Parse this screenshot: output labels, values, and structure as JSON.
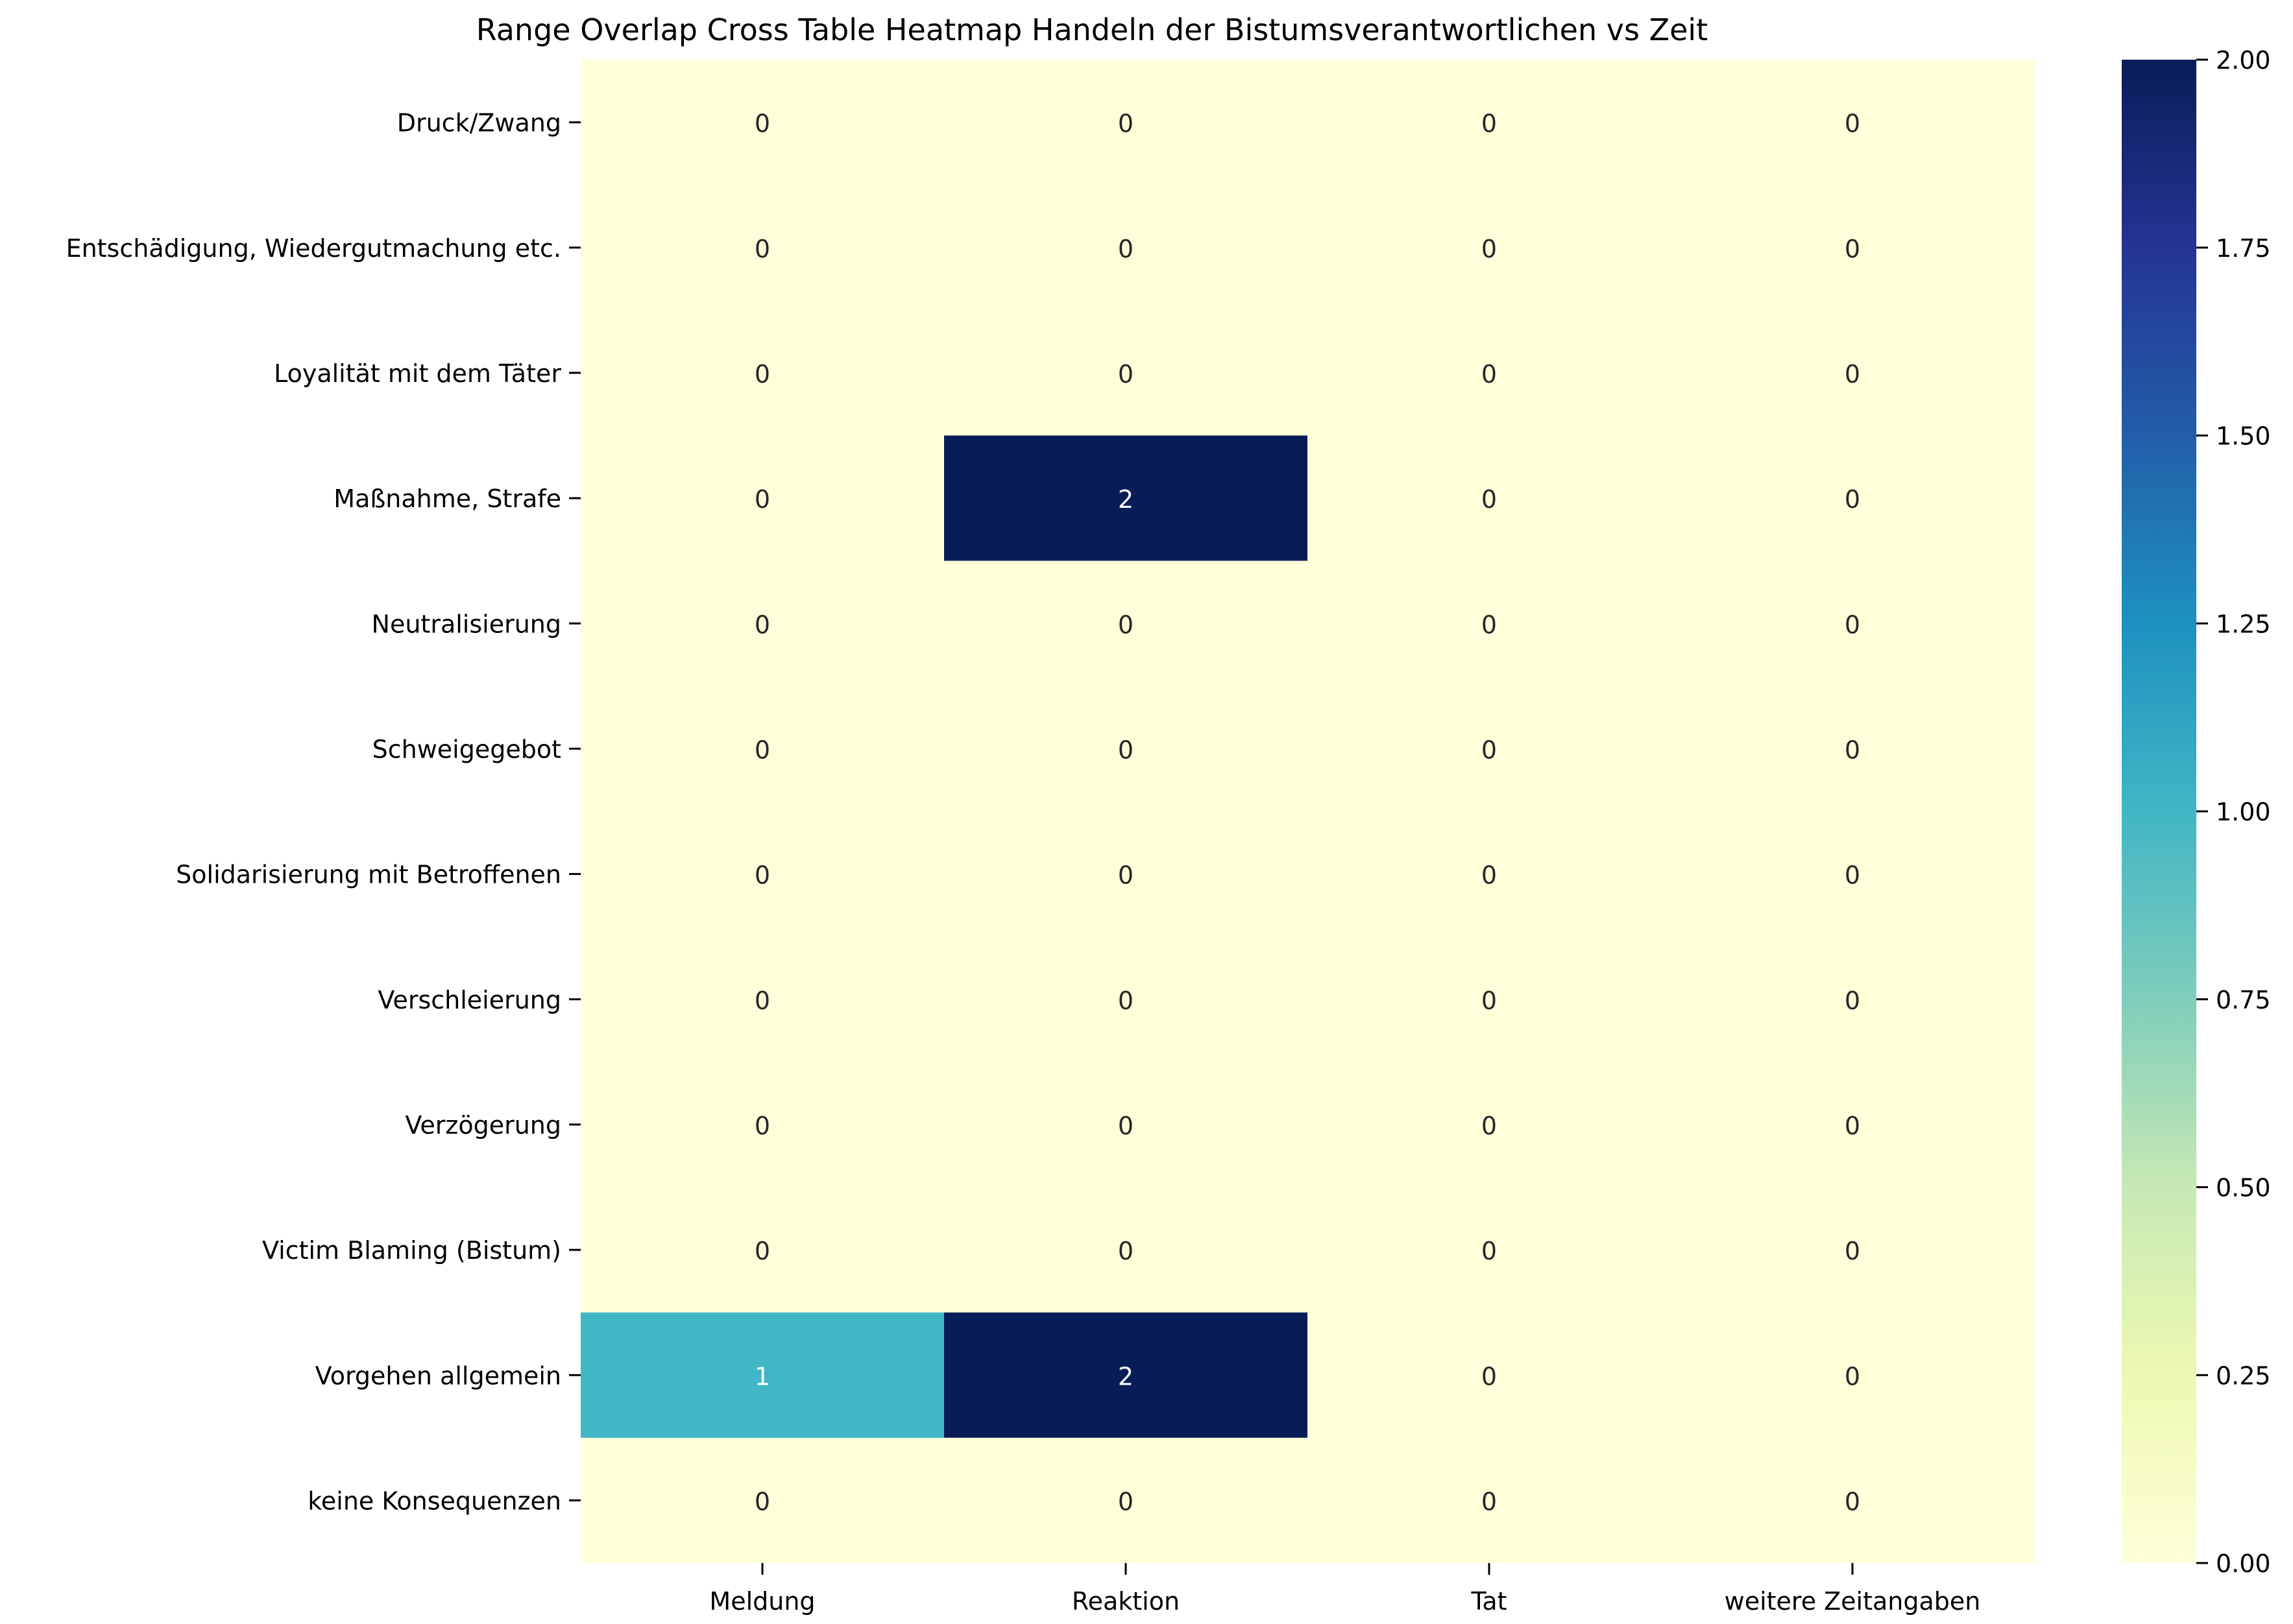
{
  "chart_data": {
    "type": "heatmap",
    "title": "Range Overlap Cross Table Heatmap Handeln der Bistumsverantwortlichen vs Zeit",
    "xlabel": "",
    "ylabel": "",
    "columns": [
      "Meldung",
      "Reaktion",
      "Tat",
      "weitere Zeitangaben"
    ],
    "rows": [
      "Druck/Zwang",
      "Entschädigung, Wiedergutmachung etc.",
      "Loyalität mit dem Täter",
      "Maßnahme, Strafe",
      "Neutralisierung",
      "Schweigegebot",
      "Solidarisierung mit Betroffenen",
      "Verschleierung",
      "Verzögerung",
      "Victim Blaming (Bistum)",
      "Vorgehen allgemein",
      "keine Konsequenzen"
    ],
    "values": [
      [
        0,
        0,
        0,
        0
      ],
      [
        0,
        0,
        0,
        0
      ],
      [
        0,
        0,
        0,
        0
      ],
      [
        0,
        2,
        0,
        0
      ],
      [
        0,
        0,
        0,
        0
      ],
      [
        0,
        0,
        0,
        0
      ],
      [
        0,
        0,
        0,
        0
      ],
      [
        0,
        0,
        0,
        0
      ],
      [
        0,
        0,
        0,
        0
      ],
      [
        0,
        0,
        0,
        0
      ],
      [
        1,
        2,
        0,
        0
      ],
      [
        0,
        0,
        0,
        0
      ]
    ],
    "colorbar": {
      "range": [
        0,
        2
      ],
      "ticks": [
        "0.00",
        "0.25",
        "0.50",
        "0.75",
        "1.00",
        "1.25",
        "1.50",
        "1.75",
        "2.00"
      ],
      "colormap": "YlGnBu",
      "stops": [
        "#ffffd9",
        "#edf8b1",
        "#c7e9b4",
        "#7fcdbb",
        "#41b6c4",
        "#1d91c0",
        "#225ea8",
        "#253494",
        "#081d58"
      ]
    },
    "annotation_colors": {
      "light_cell_text": "#262626",
      "dark_cell_text": "#ffffff"
    }
  }
}
